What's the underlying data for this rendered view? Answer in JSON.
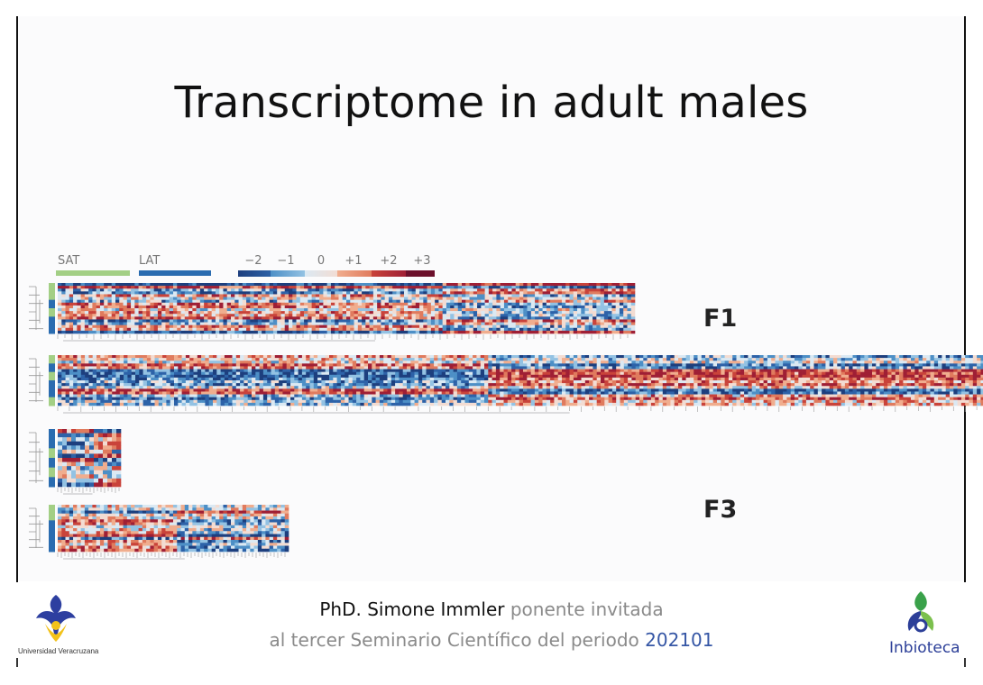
{
  "slide": {
    "title": "Transcriptome in adult males",
    "legend": {
      "groups": [
        {
          "label": "SAT",
          "color": "#a3cf85"
        },
        {
          "label": "LAT",
          "color": "#2a6cb0"
        }
      ],
      "scale": [
        {
          "label": "−2",
          "colors": [
            "#1d3f7e",
            "#2d62a8"
          ]
        },
        {
          "label": "−1",
          "colors": [
            "#4d8fc6",
            "#93c2e3"
          ]
        },
        {
          "label": "0",
          "colors": [
            "#dbe9f3",
            "#f3dcd2"
          ]
        },
        {
          "label": "+1",
          "colors": [
            "#f0ad8e",
            "#e07b5e"
          ]
        },
        {
          "label": "+2",
          "colors": [
            "#c9433a",
            "#9f1f35"
          ]
        },
        {
          "label": "+3",
          "colors": [
            "#6b0f2b",
            "#6b0f2b"
          ]
        }
      ]
    },
    "panel_labels": {
      "f1": "F1",
      "f3": "F3"
    },
    "heatmaps": [
      {
        "id": "hm1",
        "sidebar": [
          "#a3cf85",
          "#a3cf85",
          "#2a6cb0",
          "#a3cf85",
          "#2a6cb0",
          "#2a6cb0"
        ],
        "split": 0.66
      },
      {
        "id": "hm2",
        "sidebar": [
          "#a3cf85",
          "#2a6cb0",
          "#a3cf85",
          "#2a6cb0",
          "#2a6cb0",
          "#a3cf85"
        ],
        "split": 0.46
      },
      {
        "id": "hm3",
        "sidebar": [
          "#2a6cb0",
          "#2a6cb0",
          "#a3cf85",
          "#2a6cb0",
          "#a3cf85",
          "#2a6cb0"
        ],
        "split": 0.5
      },
      {
        "id": "hm4",
        "sidebar": [
          "#a3cf85",
          "#a3cf85",
          "#2a6cb0",
          "#2a6cb0",
          "#2a6cb0",
          "#2a6cb0"
        ],
        "split": 0.5
      }
    ]
  },
  "footer": {
    "speaker_name": "PhD. Simone Immler",
    "speaker_role": "ponente invitada",
    "line2_text": "al tercer Seminario Científico del periodo",
    "period": "202101",
    "left_logo_caption": "Universidad Veracruzana",
    "right_logo_caption": "Inbioteca"
  }
}
